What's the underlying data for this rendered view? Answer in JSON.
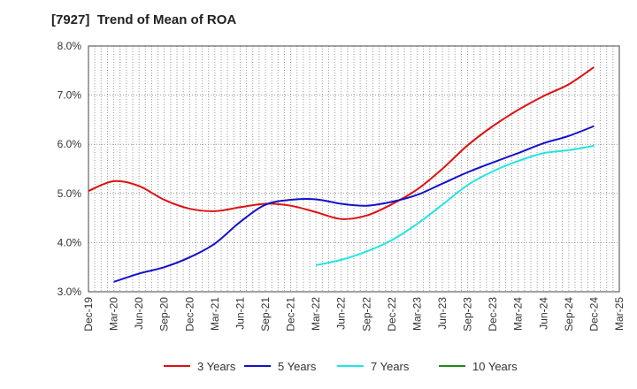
{
  "chart_data": {
    "type": "line",
    "title": "[7927]  Trend of Mean of ROA",
    "x": [
      "Dec-19",
      "Mar-20",
      "Jun-20",
      "Sep-20",
      "Dec-20",
      "Mar-21",
      "Jun-21",
      "Sep-21",
      "Dec-21",
      "Mar-22",
      "Jun-22",
      "Sep-22",
      "Dec-22",
      "Mar-23",
      "Jun-23",
      "Sep-23",
      "Dec-23",
      "Mar-24",
      "Jun-24",
      "Sep-24",
      "Dec-24",
      "Mar-25"
    ],
    "yticks": [
      "3.0%",
      "4.0%",
      "5.0%",
      "6.0%",
      "7.0%",
      "8.0%"
    ],
    "ylim": [
      3.0,
      8.0
    ],
    "grid": true,
    "legend_position": "bottom",
    "series": [
      {
        "name": "3 Years",
        "color": "#dd1111",
        "values": [
          5.05,
          5.25,
          5.15,
          4.87,
          4.69,
          4.64,
          4.72,
          4.79,
          4.75,
          4.62,
          4.48,
          4.55,
          4.78,
          5.08,
          5.5,
          5.98,
          6.37,
          6.7,
          6.98,
          7.22,
          7.57,
          null
        ]
      },
      {
        "name": "5 Years",
        "color": "#1111cc",
        "values": [
          null,
          3.2,
          3.37,
          3.5,
          3.7,
          3.98,
          4.42,
          4.77,
          4.87,
          4.88,
          4.79,
          4.75,
          4.83,
          4.97,
          5.2,
          5.43,
          5.63,
          5.82,
          6.02,
          6.17,
          6.37,
          null
        ]
      },
      {
        "name": "7 Years",
        "color": "#22e5e5",
        "values": [
          null,
          null,
          null,
          null,
          null,
          null,
          null,
          null,
          null,
          3.54,
          3.65,
          3.82,
          4.05,
          4.38,
          4.77,
          5.17,
          5.45,
          5.66,
          5.82,
          5.88,
          5.97,
          null
        ]
      },
      {
        "name": "10 Years",
        "color": "#228822",
        "values": [
          null,
          null,
          null,
          null,
          null,
          null,
          null,
          null,
          null,
          null,
          null,
          null,
          null,
          null,
          null,
          null,
          null,
          null,
          null,
          null,
          null,
          null
        ]
      }
    ]
  }
}
